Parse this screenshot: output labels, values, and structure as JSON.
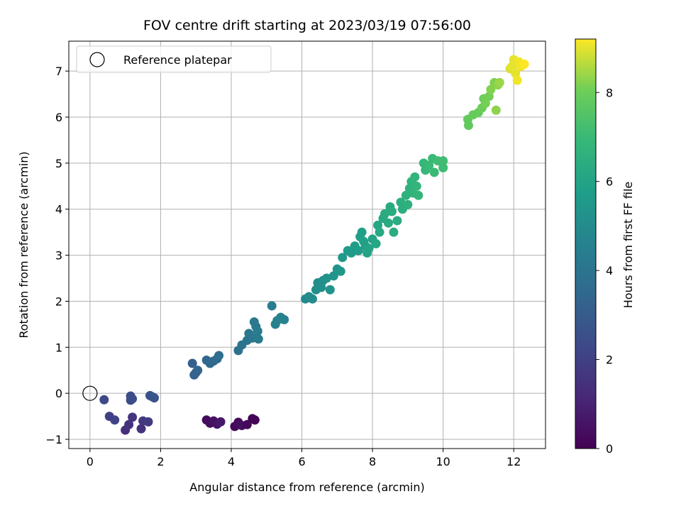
{
  "chart_data": {
    "type": "scatter",
    "title": "FOV centre drift starting at 2023/03/19 07:56:00",
    "xlabel": "Angular distance from reference (arcmin)",
    "ylabel": "Rotation from reference (arcmin)",
    "xlim": [
      -0.6,
      12.9
    ],
    "ylim": [
      -1.2,
      7.65
    ],
    "xticks": [
      0,
      2,
      4,
      6,
      8,
      10,
      12
    ],
    "yticks": [
      -1,
      0,
      1,
      2,
      3,
      4,
      5,
      6,
      7
    ],
    "grid": true,
    "legend": {
      "position": "top-left",
      "entries": [
        "Reference platepar"
      ]
    },
    "reference_point": {
      "x": 0,
      "y": 0
    },
    "colorbar": {
      "label": "Hours from first FF file",
      "colormap": "viridis",
      "range": [
        0,
        9.2
      ],
      "ticks": [
        0,
        2,
        4,
        6,
        8
      ]
    },
    "points": [
      {
        "x": 3.3,
        "y": -0.58,
        "c": 0.3
      },
      {
        "x": 3.4,
        "y": -0.65,
        "c": 0.4
      },
      {
        "x": 3.5,
        "y": -0.6,
        "c": 0.5
      },
      {
        "x": 3.6,
        "y": -0.67,
        "c": 0.6
      },
      {
        "x": 3.7,
        "y": -0.62,
        "c": 0.7
      },
      {
        "x": 4.1,
        "y": -0.72,
        "c": 0.2
      },
      {
        "x": 4.2,
        "y": -0.63,
        "c": 0.3
      },
      {
        "x": 4.3,
        "y": -0.7,
        "c": 0.4
      },
      {
        "x": 4.45,
        "y": -0.68,
        "c": 0.2
      },
      {
        "x": 4.6,
        "y": -0.55,
        "c": 0.1
      },
      {
        "x": 4.67,
        "y": -0.58,
        "c": 0.1
      },
      {
        "x": 1.0,
        "y": -0.8,
        "c": 1.4
      },
      {
        "x": 1.1,
        "y": -0.68,
        "c": 1.5
      },
      {
        "x": 1.2,
        "y": -0.52,
        "c": 1.6
      },
      {
        "x": 1.45,
        "y": -0.77,
        "c": 1.5
      },
      {
        "x": 1.5,
        "y": -0.6,
        "c": 1.7
      },
      {
        "x": 1.65,
        "y": -0.62,
        "c": 1.8
      },
      {
        "x": 0.55,
        "y": -0.5,
        "c": 2.0
      },
      {
        "x": 0.7,
        "y": -0.58,
        "c": 2.1
      },
      {
        "x": 0.4,
        "y": -0.14,
        "c": 2.3
      },
      {
        "x": 1.15,
        "y": -0.06,
        "c": 2.4
      },
      {
        "x": 1.15,
        "y": -0.15,
        "c": 2.45
      },
      {
        "x": 1.2,
        "y": -0.12,
        "c": 2.5
      },
      {
        "x": 1.7,
        "y": -0.05,
        "c": 2.6
      },
      {
        "x": 1.75,
        "y": -0.07,
        "c": 2.7
      },
      {
        "x": 1.82,
        "y": -0.1,
        "c": 2.7
      },
      {
        "x": 2.9,
        "y": 0.65,
        "c": 3.1
      },
      {
        "x": 2.95,
        "y": 0.4,
        "c": 3.2
      },
      {
        "x": 3.0,
        "y": 0.45,
        "c": 3.2
      },
      {
        "x": 3.05,
        "y": 0.5,
        "c": 3.3
      },
      {
        "x": 3.3,
        "y": 0.72,
        "c": 3.4
      },
      {
        "x": 3.4,
        "y": 0.65,
        "c": 3.4
      },
      {
        "x": 3.5,
        "y": 0.7,
        "c": 3.5
      },
      {
        "x": 3.6,
        "y": 0.75,
        "c": 3.6
      },
      {
        "x": 3.65,
        "y": 0.82,
        "c": 3.7
      },
      {
        "x": 4.2,
        "y": 0.93,
        "c": 3.9
      },
      {
        "x": 4.3,
        "y": 1.05,
        "c": 4.0
      },
      {
        "x": 4.45,
        "y": 1.15,
        "c": 4.0
      },
      {
        "x": 4.5,
        "y": 1.3,
        "c": 4.1
      },
      {
        "x": 4.6,
        "y": 1.2,
        "c": 4.1
      },
      {
        "x": 4.65,
        "y": 1.55,
        "c": 4.2
      },
      {
        "x": 4.7,
        "y": 1.45,
        "c": 4.2
      },
      {
        "x": 4.75,
        "y": 1.35,
        "c": 4.3
      },
      {
        "x": 4.77,
        "y": 1.18,
        "c": 4.3
      },
      {
        "x": 5.15,
        "y": 1.9,
        "c": 4.4
      },
      {
        "x": 5.25,
        "y": 1.5,
        "c": 4.5
      },
      {
        "x": 5.3,
        "y": 1.58,
        "c": 4.5
      },
      {
        "x": 5.4,
        "y": 1.65,
        "c": 4.6
      },
      {
        "x": 5.5,
        "y": 1.6,
        "c": 4.6
      },
      {
        "x": 6.1,
        "y": 2.05,
        "c": 4.9
      },
      {
        "x": 6.2,
        "y": 2.1,
        "c": 5.0
      },
      {
        "x": 6.3,
        "y": 2.05,
        "c": 5.0
      },
      {
        "x": 6.4,
        "y": 2.25,
        "c": 5.1
      },
      {
        "x": 6.45,
        "y": 2.4,
        "c": 5.1
      },
      {
        "x": 6.55,
        "y": 2.3,
        "c": 5.2
      },
      {
        "x": 6.6,
        "y": 2.45,
        "c": 5.2
      },
      {
        "x": 6.7,
        "y": 2.5,
        "c": 5.3
      },
      {
        "x": 6.8,
        "y": 2.25,
        "c": 5.3
      },
      {
        "x": 6.9,
        "y": 2.55,
        "c": 5.4
      },
      {
        "x": 7.0,
        "y": 2.7,
        "c": 5.4
      },
      {
        "x": 7.1,
        "y": 2.65,
        "c": 5.5
      },
      {
        "x": 7.15,
        "y": 2.95,
        "c": 5.5
      },
      {
        "x": 7.3,
        "y": 3.1,
        "c": 5.6
      },
      {
        "x": 7.4,
        "y": 3.05,
        "c": 5.6
      },
      {
        "x": 7.5,
        "y": 3.2,
        "c": 5.7
      },
      {
        "x": 7.6,
        "y": 3.1,
        "c": 5.7
      },
      {
        "x": 7.65,
        "y": 3.4,
        "c": 5.8
      },
      {
        "x": 7.7,
        "y": 3.5,
        "c": 5.8
      },
      {
        "x": 7.75,
        "y": 3.3,
        "c": 5.9
      },
      {
        "x": 7.8,
        "y": 3.2,
        "c": 5.9
      },
      {
        "x": 7.85,
        "y": 3.05,
        "c": 6.0
      },
      {
        "x": 7.9,
        "y": 3.15,
        "c": 6.0
      },
      {
        "x": 8.0,
        "y": 3.35,
        "c": 6.0
      },
      {
        "x": 8.1,
        "y": 3.25,
        "c": 6.1
      },
      {
        "x": 8.15,
        "y": 3.65,
        "c": 6.1
      },
      {
        "x": 8.2,
        "y": 3.5,
        "c": 6.2
      },
      {
        "x": 8.3,
        "y": 3.8,
        "c": 6.2
      },
      {
        "x": 8.35,
        "y": 3.9,
        "c": 6.3
      },
      {
        "x": 8.45,
        "y": 3.7,
        "c": 6.3
      },
      {
        "x": 8.5,
        "y": 4.05,
        "c": 6.3
      },
      {
        "x": 8.55,
        "y": 3.95,
        "c": 6.4
      },
      {
        "x": 8.6,
        "y": 3.5,
        "c": 6.4
      },
      {
        "x": 8.7,
        "y": 3.75,
        "c": 6.4
      },
      {
        "x": 8.8,
        "y": 4.15,
        "c": 6.5
      },
      {
        "x": 8.85,
        "y": 4.0,
        "c": 6.5
      },
      {
        "x": 8.95,
        "y": 4.3,
        "c": 6.6
      },
      {
        "x": 9.0,
        "y": 4.1,
        "c": 6.6
      },
      {
        "x": 9.05,
        "y": 4.45,
        "c": 6.6
      },
      {
        "x": 9.1,
        "y": 4.6,
        "c": 6.7
      },
      {
        "x": 9.15,
        "y": 4.35,
        "c": 6.7
      },
      {
        "x": 9.2,
        "y": 4.7,
        "c": 6.7
      },
      {
        "x": 9.25,
        "y": 4.5,
        "c": 6.8
      },
      {
        "x": 9.3,
        "y": 4.3,
        "c": 6.8
      },
      {
        "x": 9.45,
        "y": 5.0,
        "c": 6.9
      },
      {
        "x": 9.5,
        "y": 4.85,
        "c": 6.9
      },
      {
        "x": 9.6,
        "y": 4.95,
        "c": 7.0
      },
      {
        "x": 9.7,
        "y": 5.1,
        "c": 7.0
      },
      {
        "x": 9.75,
        "y": 4.8,
        "c": 7.0
      },
      {
        "x": 9.85,
        "y": 5.05,
        "c": 7.1
      },
      {
        "x": 10.0,
        "y": 5.05,
        "c": 7.1
      },
      {
        "x": 10.0,
        "y": 4.9,
        "c": 7.1
      },
      {
        "x": 10.7,
        "y": 5.95,
        "c": 7.8
      },
      {
        "x": 10.72,
        "y": 5.82,
        "c": 7.8
      },
      {
        "x": 10.85,
        "y": 6.05,
        "c": 7.9
      },
      {
        "x": 11.0,
        "y": 6.1,
        "c": 7.9
      },
      {
        "x": 11.1,
        "y": 6.2,
        "c": 8.0
      },
      {
        "x": 11.15,
        "y": 6.4,
        "c": 8.0
      },
      {
        "x": 11.2,
        "y": 6.3,
        "c": 8.1
      },
      {
        "x": 11.3,
        "y": 6.45,
        "c": 8.1
      },
      {
        "x": 11.35,
        "y": 6.6,
        "c": 8.2
      },
      {
        "x": 11.45,
        "y": 6.75,
        "c": 8.2
      },
      {
        "x": 11.5,
        "y": 6.15,
        "c": 8.3
      },
      {
        "x": 11.55,
        "y": 6.7,
        "c": 8.3
      },
      {
        "x": 11.6,
        "y": 6.75,
        "c": 8.4
      },
      {
        "x": 11.9,
        "y": 7.05,
        "c": 8.9
      },
      {
        "x": 11.95,
        "y": 7.1,
        "c": 9.0
      },
      {
        "x": 12.0,
        "y": 7.25,
        "c": 9.0
      },
      {
        "x": 12.05,
        "y": 6.95,
        "c": 9.0
      },
      {
        "x": 12.1,
        "y": 6.8,
        "c": 9.1
      },
      {
        "x": 12.15,
        "y": 7.2,
        "c": 9.1
      },
      {
        "x": 12.2,
        "y": 7.1,
        "c": 9.1
      },
      {
        "x": 12.3,
        "y": 7.15,
        "c": 9.2
      }
    ]
  }
}
